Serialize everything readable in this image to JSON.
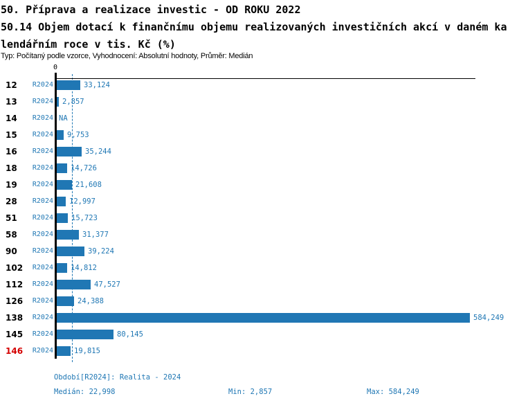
{
  "header": {
    "title_line1": "50. Příprava a realizace investic - OD ROKU 2022",
    "title_line2": "50.14 Objem dotací k finančnímu objemu realizovaných investičních akcí v daném ka",
    "title_line3": "lendářním roce v tis. Kč (%)",
    "meta_line": "Typ: Počítaný podle vzorce, Vyhodnocení: Absolutní hodnoty, Průměr: Medián"
  },
  "chart_data": {
    "type": "bar",
    "orientation": "horizontal",
    "zero_label": "0",
    "series_name": "R2024",
    "xlim": [
      0,
      584249
    ],
    "median": 22998,
    "grid": "off",
    "highlighted_category": "146",
    "rows": [
      {
        "label": "12",
        "series": "R2024",
        "value": 33124,
        "value_label": "33,124",
        "highlight": false
      },
      {
        "label": "13",
        "series": "R2024",
        "value": 2857,
        "value_label": "2,857",
        "highlight": false
      },
      {
        "label": "14",
        "series": "R2024",
        "value": null,
        "value_label": "NA",
        "highlight": false
      },
      {
        "label": "15",
        "series": "R2024",
        "value": 9753,
        "value_label": "9,753",
        "highlight": false
      },
      {
        "label": "16",
        "series": "R2024",
        "value": 35244,
        "value_label": "35,244",
        "highlight": false
      },
      {
        "label": "18",
        "series": "R2024",
        "value": 14726,
        "value_label": "14,726",
        "highlight": false
      },
      {
        "label": "19",
        "series": "R2024",
        "value": 21608,
        "value_label": "21,608",
        "highlight": false
      },
      {
        "label": "28",
        "series": "R2024",
        "value": 12997,
        "value_label": "12,997",
        "highlight": false
      },
      {
        "label": "51",
        "series": "R2024",
        "value": 15723,
        "value_label": "15,723",
        "highlight": false
      },
      {
        "label": "58",
        "series": "R2024",
        "value": 31377,
        "value_label": "31,377",
        "highlight": false
      },
      {
        "label": "90",
        "series": "R2024",
        "value": 39224,
        "value_label": "39,224",
        "highlight": false
      },
      {
        "label": "102",
        "series": "R2024",
        "value": 14812,
        "value_label": "14,812",
        "highlight": false
      },
      {
        "label": "112",
        "series": "R2024",
        "value": 47527,
        "value_label": "47,527",
        "highlight": false
      },
      {
        "label": "126",
        "series": "R2024",
        "value": 24388,
        "value_label": "24,388",
        "highlight": false
      },
      {
        "label": "138",
        "series": "R2024",
        "value": 584249,
        "value_label": "584,249",
        "highlight": false
      },
      {
        "label": "145",
        "series": "R2024",
        "value": 80145,
        "value_label": "80,145",
        "highlight": false
      },
      {
        "label": "146",
        "series": "R2024",
        "value": 19815,
        "value_label": "19,815",
        "highlight": true
      }
    ]
  },
  "footer": {
    "period": "Období[R2024]: Realita - 2024",
    "median": "Medián: 22,998",
    "min": "Min: 2,857",
    "max": "Max: 584,249"
  },
  "colors": {
    "bar": "#2077B4",
    "blue_text": "#1F77B4",
    "highlight_red": "#D40000"
  }
}
